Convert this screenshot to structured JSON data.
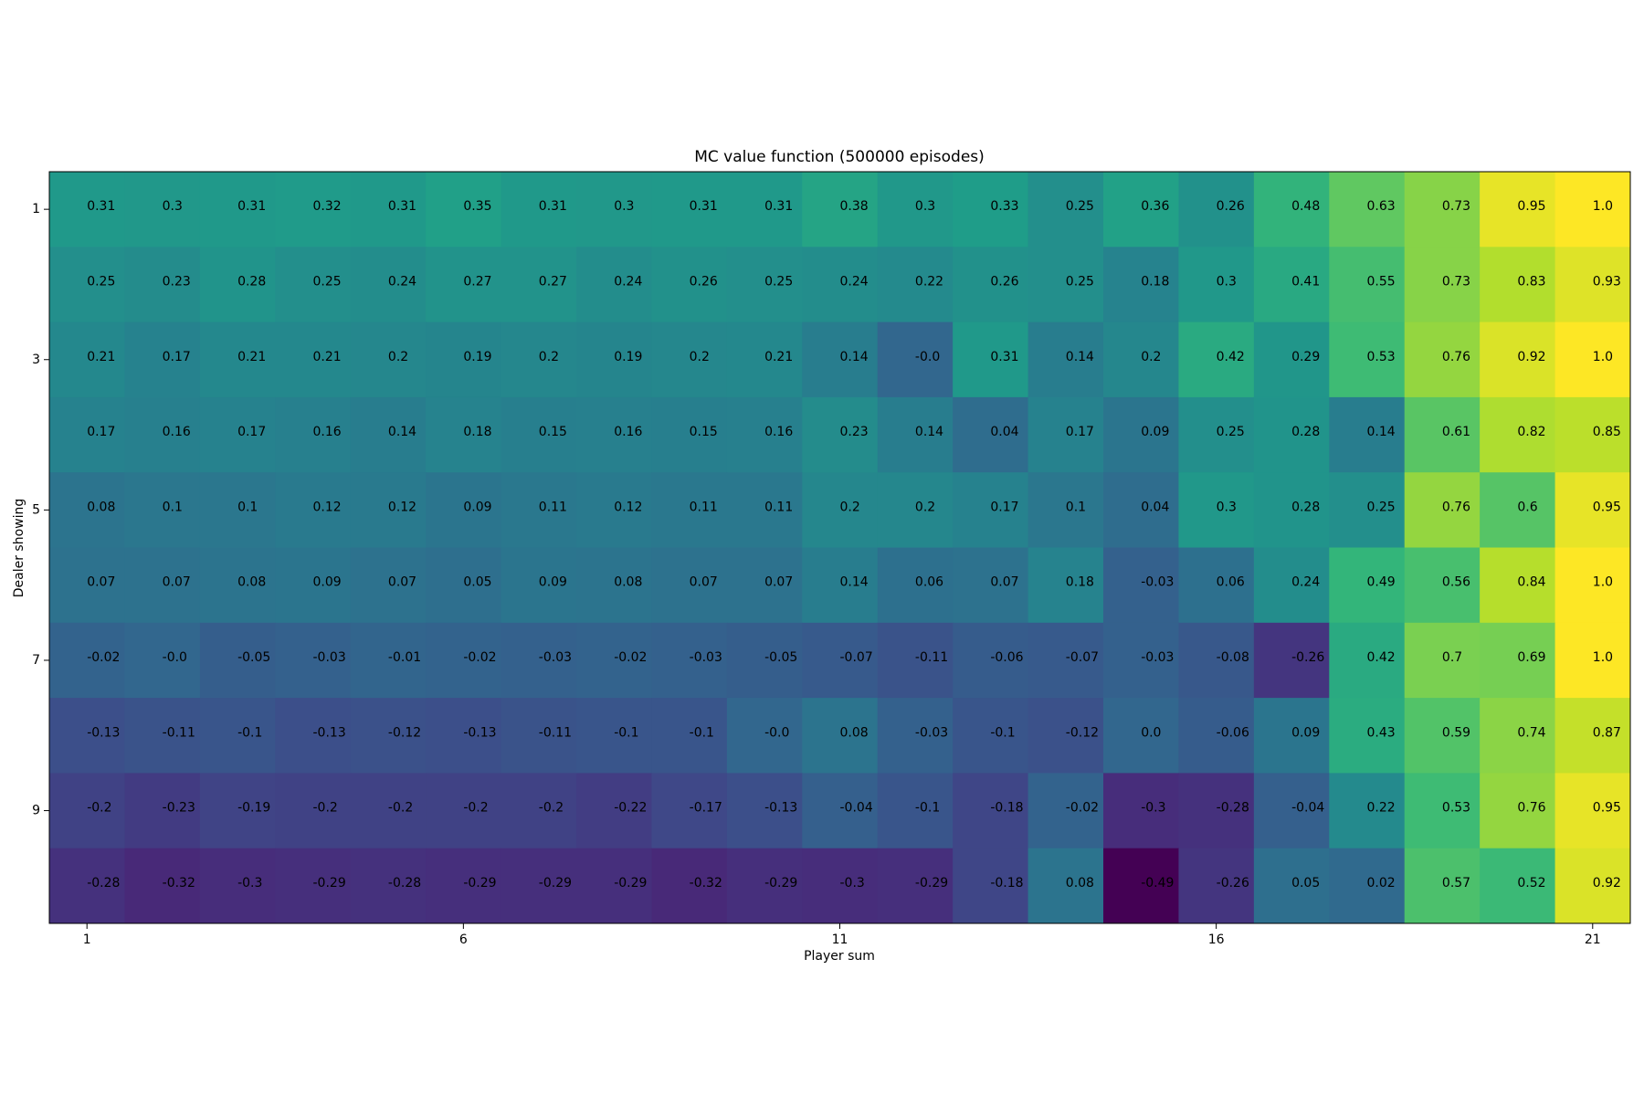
{
  "chart_data": {
    "type": "heatmap",
    "title": "MC value function (500000 episodes)",
    "xlabel": "Player sum",
    "ylabel": "Dealer showing",
    "x": [
      1,
      2,
      3,
      4,
      5,
      6,
      7,
      8,
      9,
      10,
      11,
      12,
      13,
      14,
      15,
      16,
      17,
      18,
      19,
      20,
      21
    ],
    "y": [
      1,
      2,
      3,
      4,
      5,
      6,
      7,
      8,
      9,
      10
    ],
    "xlim": [
      0.5,
      21.5
    ],
    "ylim": [
      10.5,
      0.5
    ],
    "xticks": [
      1,
      6,
      11,
      16,
      21
    ],
    "yticks": [
      1,
      3,
      5,
      7,
      9
    ],
    "colormap": "viridis",
    "values": [
      [
        0.31,
        0.3,
        0.31,
        0.32,
        0.31,
        0.35,
        0.31,
        0.3,
        0.31,
        0.31,
        0.38,
        0.3,
        0.33,
        0.25,
        0.36,
        0.26,
        0.48,
        0.63,
        0.73,
        0.95,
        1.0
      ],
      [
        0.25,
        0.23,
        0.28,
        0.25,
        0.24,
        0.27,
        0.27,
        0.24,
        0.26,
        0.25,
        0.24,
        0.22,
        0.26,
        0.25,
        0.18,
        0.3,
        0.41,
        0.55,
        0.73,
        0.83,
        0.93
      ],
      [
        0.21,
        0.17,
        0.21,
        0.21,
        0.2,
        0.19,
        0.2,
        0.19,
        0.2,
        0.21,
        0.14,
        0,
        0.31,
        0.14,
        0.2,
        0.42,
        0.29,
        0.53,
        0.76,
        0.92,
        1.0
      ],
      [
        0.17,
        0.16,
        0.17,
        0.16,
        0.14,
        0.18,
        0.15,
        0.16,
        0.15,
        0.16,
        0.23,
        0.14,
        0.04,
        0.17,
        0.09,
        0.25,
        0.28,
        0.14,
        0.61,
        0.82,
        0.85
      ],
      [
        0.08,
        0.1,
        0.1,
        0.12,
        0.12,
        0.09,
        0.11,
        0.12,
        0.11,
        0.11,
        0.2,
        0.2,
        0.17,
        0.1,
        0.04,
        0.3,
        0.28,
        0.25,
        0.76,
        0.6,
        0.95
      ],
      [
        0.07,
        0.07,
        0.08,
        0.09,
        0.07,
        0.05,
        0.09,
        0.08,
        0.07,
        0.07,
        0.14,
        0.06,
        0.07,
        0.18,
        -0.03,
        0.06,
        0.24,
        0.49,
        0.56,
        0.84,
        1.0
      ],
      [
        -0.02,
        0,
        -0.05,
        -0.03,
        -0.01,
        -0.02,
        -0.03,
        -0.02,
        -0.03,
        -0.05,
        -0.07,
        -0.11,
        -0.06,
        -0.07,
        -0.03,
        -0.08,
        -0.26,
        0.42,
        0.7,
        0.69,
        1.0
      ],
      [
        -0.13,
        -0.11,
        -0.1,
        -0.13,
        -0.12,
        -0.13,
        -0.11,
        -0.1,
        -0.1,
        0,
        0.08,
        -0.03,
        -0.1,
        -0.12,
        0,
        -0.06,
        0.09,
        0.43,
        0.59,
        0.74,
        0.87
      ],
      [
        -0.2,
        -0.23,
        -0.19,
        -0.2,
        -0.2,
        -0.2,
        -0.2,
        -0.22,
        -0.17,
        -0.13,
        -0.04,
        -0.1,
        -0.18,
        -0.02,
        -0.3,
        -0.28,
        -0.04,
        0.22,
        0.53,
        0.76,
        0.95
      ],
      [
        -0.28,
        -0.32,
        -0.3,
        -0.29,
        -0.28,
        -0.29,
        -0.29,
        -0.29,
        -0.32,
        -0.29,
        -0.3,
        -0.29,
        -0.18,
        0.08,
        -0.49,
        -0.26,
        0.05,
        0.02,
        0.57,
        0.52,
        0.92
      ]
    ],
    "value_labels": [
      [
        "0.31",
        "0.3",
        "0.31",
        "0.32",
        "0.31",
        "0.35",
        "0.31",
        "0.3",
        "0.31",
        "0.31",
        "0.38",
        "0.3",
        "0.33",
        "0.25",
        "0.36",
        "0.26",
        "0.48",
        "0.63",
        "0.73",
        "0.95",
        "1.0"
      ],
      [
        "0.25",
        "0.23",
        "0.28",
        "0.25",
        "0.24",
        "0.27",
        "0.27",
        "0.24",
        "0.26",
        "0.25",
        "0.24",
        "0.22",
        "0.26",
        "0.25",
        "0.18",
        "0.3",
        "0.41",
        "0.55",
        "0.73",
        "0.83",
        "0.93"
      ],
      [
        "0.21",
        "0.17",
        "0.21",
        "0.21",
        "0.2",
        "0.19",
        "0.2",
        "0.19",
        "0.2",
        "0.21",
        "0.14",
        "-0.0",
        "0.31",
        "0.14",
        "0.2",
        "0.42",
        "0.29",
        "0.53",
        "0.76",
        "0.92",
        "1.0"
      ],
      [
        "0.17",
        "0.16",
        "0.17",
        "0.16",
        "0.14",
        "0.18",
        "0.15",
        "0.16",
        "0.15",
        "0.16",
        "0.23",
        "0.14",
        "0.04",
        "0.17",
        "0.09",
        "0.25",
        "0.28",
        "0.14",
        "0.61",
        "0.82",
        "0.85"
      ],
      [
        "0.08",
        "0.1",
        "0.1",
        "0.12",
        "0.12",
        "0.09",
        "0.11",
        "0.12",
        "0.11",
        "0.11",
        "0.2",
        "0.2",
        "0.17",
        "0.1",
        "0.04",
        "0.3",
        "0.28",
        "0.25",
        "0.76",
        "0.6",
        "0.95"
      ],
      [
        "0.07",
        "0.07",
        "0.08",
        "0.09",
        "0.07",
        "0.05",
        "0.09",
        "0.08",
        "0.07",
        "0.07",
        "0.14",
        "0.06",
        "0.07",
        "0.18",
        "-0.03",
        "0.06",
        "0.24",
        "0.49",
        "0.56",
        "0.84",
        "1.0"
      ],
      [
        "-0.02",
        "-0.0",
        "-0.05",
        "-0.03",
        "-0.01",
        "-0.02",
        "-0.03",
        "-0.02",
        "-0.03",
        "-0.05",
        "-0.07",
        "-0.11",
        "-0.06",
        "-0.07",
        "-0.03",
        "-0.08",
        "-0.26",
        "0.42",
        "0.7",
        "0.69",
        "1.0"
      ],
      [
        "-0.13",
        "-0.11",
        "-0.1",
        "-0.13",
        "-0.12",
        "-0.13",
        "-0.11",
        "-0.1",
        "-0.1",
        "-0.0",
        "0.08",
        "-0.03",
        "-0.1",
        "-0.12",
        "0.0",
        "-0.06",
        "0.09",
        "0.43",
        "0.59",
        "0.74",
        "0.87"
      ],
      [
        "-0.2",
        "-0.23",
        "-0.19",
        "-0.2",
        "-0.2",
        "-0.2",
        "-0.2",
        "-0.22",
        "-0.17",
        "-0.13",
        "-0.04",
        "-0.1",
        "-0.18",
        "-0.02",
        "-0.3",
        "-0.28",
        "-0.04",
        "0.22",
        "0.53",
        "0.76",
        "0.95"
      ],
      [
        "-0.28",
        "-0.32",
        "-0.3",
        "-0.29",
        "-0.28",
        "-0.29",
        "-0.29",
        "-0.29",
        "-0.32",
        "-0.29",
        "-0.3",
        "-0.29",
        "-0.18",
        "0.08",
        "-0.49",
        "-0.26",
        "0.05",
        "0.02",
        "0.57",
        "0.52",
        "0.92"
      ]
    ]
  }
}
